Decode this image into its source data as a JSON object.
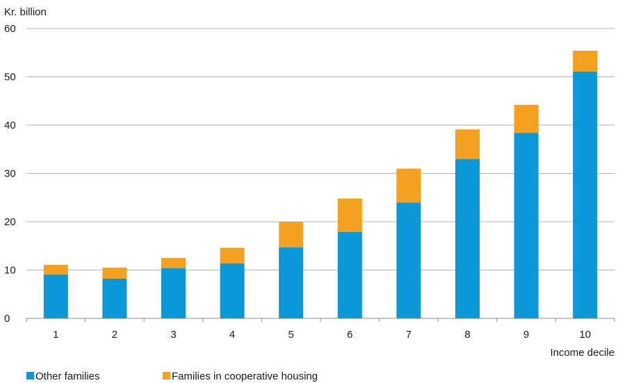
{
  "chart_data": {
    "type": "bar",
    "stacked": true,
    "title": "",
    "ylabel": "Kr. billion",
    "xlabel": "Income decile",
    "categories": [
      "1",
      "2",
      "3",
      "4",
      "5",
      "6",
      "7",
      "8",
      "9",
      "10"
    ],
    "series": [
      {
        "name": "Other families",
        "color": "#0a98d8",
        "values": [
          9.1,
          8.2,
          10.4,
          11.4,
          14.7,
          17.9,
          24.0,
          33.0,
          38.4,
          51.1
        ]
      },
      {
        "name": "Families in cooperative housing",
        "color": "#f5a01e",
        "values": [
          2.0,
          2.3,
          2.1,
          3.2,
          5.3,
          6.9,
          7.0,
          6.1,
          5.8,
          4.3
        ]
      }
    ],
    "ylim": [
      0,
      60
    ],
    "yticks": [
      0,
      10,
      20,
      30,
      40,
      50,
      60
    ],
    "grid": true,
    "legend_position": "bottom-left"
  }
}
